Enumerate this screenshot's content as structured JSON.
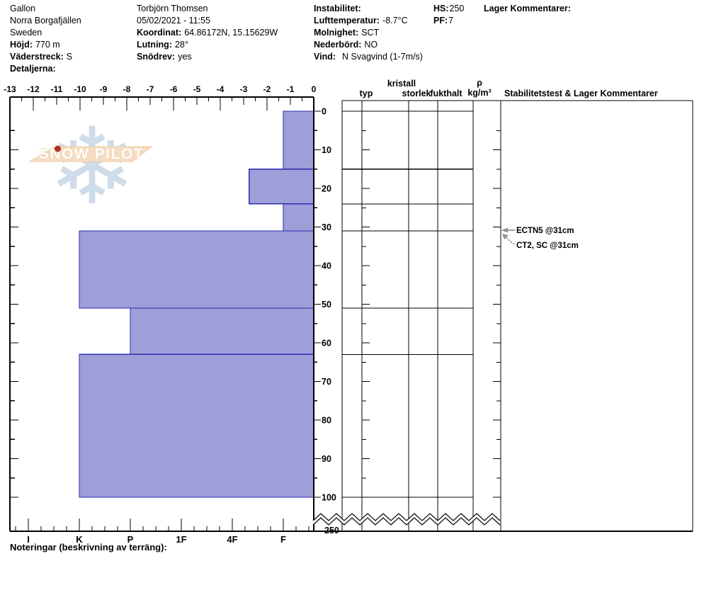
{
  "header": {
    "site": {
      "name": "Gallon",
      "region": "Norra Borgafjällen",
      "country": "Sweden",
      "elevation_label": "Höjd:",
      "elevation": "770 m",
      "aspect_label": "Väderstreck:",
      "aspect": "S",
      "details_label": "Detaljerna:"
    },
    "observer": {
      "name": "Torbjörn Thomsen",
      "datetime": "05/02/2021 - 11:55",
      "coord_label": "Koordinat:",
      "coord": "64.86172N, 15.15629W",
      "slope_label": "Lutning:",
      "slope": "28°",
      "drift_label": "Snödrev:",
      "drift": "yes"
    },
    "weather": {
      "instability_label": "Instabilitet:",
      "airtemp_label": "Lufttemperatur:",
      "airtemp": "-8.7°C",
      "sky_label": "Molnighet:",
      "sky": "SCT",
      "precip_label": "Nederbörd:",
      "precip": "NO",
      "wind_label": "Vind:",
      "wind": "N Svagvind (1-7m/s)"
    },
    "totals": {
      "hs_label": "HS:",
      "hs": "250",
      "pf_label": "PF:",
      "pf": "7"
    },
    "layer_comments_label": "Lager Kommentarer:"
  },
  "footer": {
    "notes_label": "Noteringar (beskrivning av terräng):"
  },
  "chart_data": {
    "type": "bar",
    "orientation": "horizontal-snow-profile",
    "title": "SnowPilot snow profile",
    "hardness_axis": {
      "labels": [
        "I",
        "K",
        "P",
        "1F",
        "4F",
        "F"
      ],
      "values": [
        6,
        5,
        4,
        3,
        2,
        1
      ]
    },
    "temp_axis": {
      "min": -13,
      "max": 0,
      "step": 1
    },
    "depth_axis": {
      "label_step": 10,
      "minor_step": 5,
      "max_visible": 100,
      "break_label": "250",
      "total_depth": 250
    },
    "layers": [
      {
        "top_cm": 0,
        "bottom_cm": 15,
        "hardness": "F",
        "hardness_value": 1
      },
      {
        "top_cm": 15,
        "bottom_cm": 24,
        "hardness": "4F-",
        "hardness_value": 1.67
      },
      {
        "top_cm": 24,
        "bottom_cm": 31,
        "hardness": "F",
        "hardness_value": 1
      },
      {
        "top_cm": 31,
        "bottom_cm": 51,
        "hardness": "K",
        "hardness_value": 5
      },
      {
        "top_cm": 51,
        "bottom_cm": 63,
        "hardness": "P",
        "hardness_value": 4
      },
      {
        "top_cm": 63,
        "bottom_cm": 100,
        "hardness": "K",
        "hardness_value": 5
      }
    ],
    "columns": {
      "typ": "typ",
      "kristall_line1": "kristall",
      "kristall_line2": "storlek",
      "fukthalt": "fukthalt",
      "density_line1": "ρ",
      "density_line2": "kg/m³",
      "comments": "Stabilitetstest & Lager Kommentarer"
    },
    "annotations": [
      {
        "text": "ECTN5 @31cm",
        "depth_cm": 31
      },
      {
        "text": "CT2, SC @31cm",
        "depth_cm": 31
      }
    ],
    "logo": {
      "text": "SNOW PILOT",
      "snowflake_icon": "❄"
    },
    "colors": {
      "bar_fill": "#9e9ed8",
      "bar_stroke": "#2b2bb0",
      "axis": "#000000",
      "arrow": "#909090",
      "logo_banner": "#f6ddc1",
      "logo_banner_stroke": "#eccaa6",
      "logo_flake": "#cfdce9",
      "logo_dot": "#b13425"
    }
  }
}
